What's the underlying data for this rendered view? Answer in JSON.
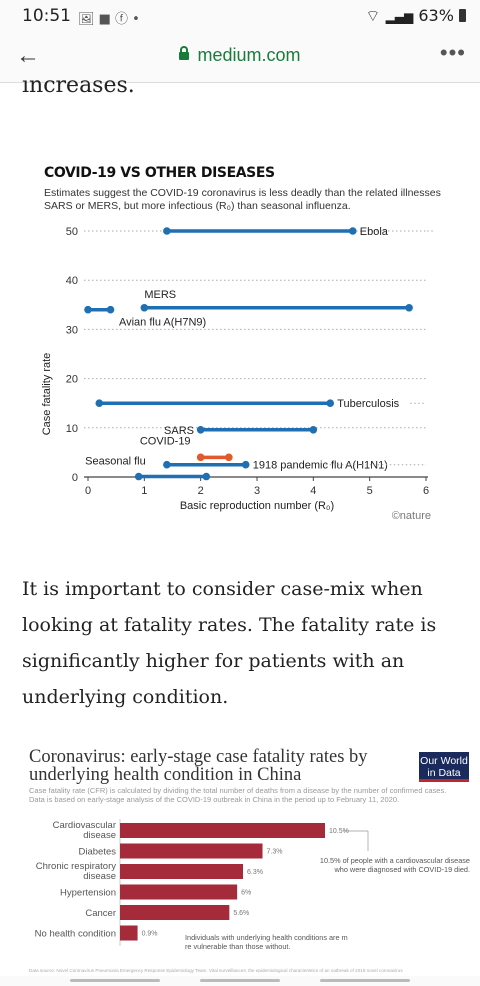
{
  "status": {
    "time": "10:51",
    "left_icons": "🖼 ■ ⓕ •",
    "battery": "63%",
    "signal": "📶"
  },
  "browser": {
    "url": "medium.com",
    "back_icon": "back-arrow-icon",
    "menu": "•••"
  },
  "article": {
    "cut_text": "increases.",
    "paragraph": "It is important to consider case-mix when looking at fatality rates. The fatality rate is significantly higher for patients with an underlying condition."
  },
  "chart1": {
    "title": "COVID-19 VS OTHER DISEASES",
    "subtitle": "Estimates suggest the COVID-19 coronavirus is less deadly than the related illnesses SARS or MERS, but more infectious (R₀) than seasonal influenza.",
    "credit": "©nature"
  },
  "chart2": {
    "title": "Coronavirus: early-stage case fatality rates by underlying health condition in China",
    "subtitle": "Case fatality rate (CFR) is calculated by dividing the total number of deaths from a disease by the number of confirmed cases. Data is based on early-stage analysis of the COVID-19 outbreak in China in the period up to February 11, 2020.",
    "badge": "Our World in Data",
    "source": "Data source: Novel Coronavirus Pneumonia Emergency Response Epidemiology Team. Vital surveillances: the epidemiological characteristics of an outbreak of 2019 novel coronavirus"
  },
  "chart_data": [
    {
      "type": "range",
      "title": "COVID-19 VS OTHER DISEASES",
      "xlabel": "Basic reproduction number (R₀)",
      "ylabel": "Case fatality rate",
      "xlim": [
        0,
        6
      ],
      "ylim": [
        0,
        50
      ],
      "xticks": [
        0,
        1,
        2,
        3,
        4,
        5,
        6
      ],
      "yticks": [
        0,
        10,
        20,
        30,
        40,
        50
      ],
      "grid": "dotted horizontal",
      "series": [
        {
          "name": "Ebola",
          "x_range": [
            1.4,
            4.7
          ],
          "y": 50,
          "color": "#1f6fb2"
        },
        {
          "name": "MERS",
          "x_range": [
            1.0,
            5.7
          ],
          "y": 34.4,
          "color": "#1f6fb2"
        },
        {
          "name": "Avian flu A(H7N9)",
          "x_range": [
            0.0,
            0.4
          ],
          "y": 34,
          "color": "#1f6fb2"
        },
        {
          "name": "Tuberculosis",
          "x_range": [
            0.2,
            4.3
          ],
          "y": 15,
          "color": "#1f6fb2"
        },
        {
          "name": "SARS",
          "x_range": [
            2.0,
            4.0
          ],
          "y": 9.6,
          "color": "#1f6fb2"
        },
        {
          "name": "COVID-19",
          "x_range": [
            2.0,
            2.5
          ],
          "y": 4,
          "color": "#e05a2b"
        },
        {
          "name": "1918 pandemic flu A(H1N1)",
          "x_range": [
            1.4,
            2.8
          ],
          "y": 2.5,
          "color": "#1f6fb2"
        },
        {
          "name": "Seasonal flu",
          "x_range": [
            0.9,
            2.1
          ],
          "y": 0.1,
          "color": "#1f6fb2"
        }
      ]
    },
    {
      "type": "bar",
      "orientation": "horizontal",
      "title": "Coronavirus: early-stage case fatality rates by underlying health condition in China",
      "categories": [
        "Cardiovascular disease",
        "Diabetes",
        "Chronic respiratory disease",
        "Hypertension",
        "Cancer",
        "No health condition"
      ],
      "values": [
        10.5,
        7.3,
        6.3,
        6,
        5.6,
        0.9
      ],
      "labels": [
        "10.5%",
        "7.3%",
        "6.3%",
        "6%",
        "5.6%",
        "0.9%"
      ],
      "color": "#a52a3a",
      "annotations": [
        "10.5% of people with a cardiovascular disease who were diagnosed with COVID-19 died.",
        "Individuals with underlying health conditions are more vulnerable than those without."
      ]
    }
  ]
}
